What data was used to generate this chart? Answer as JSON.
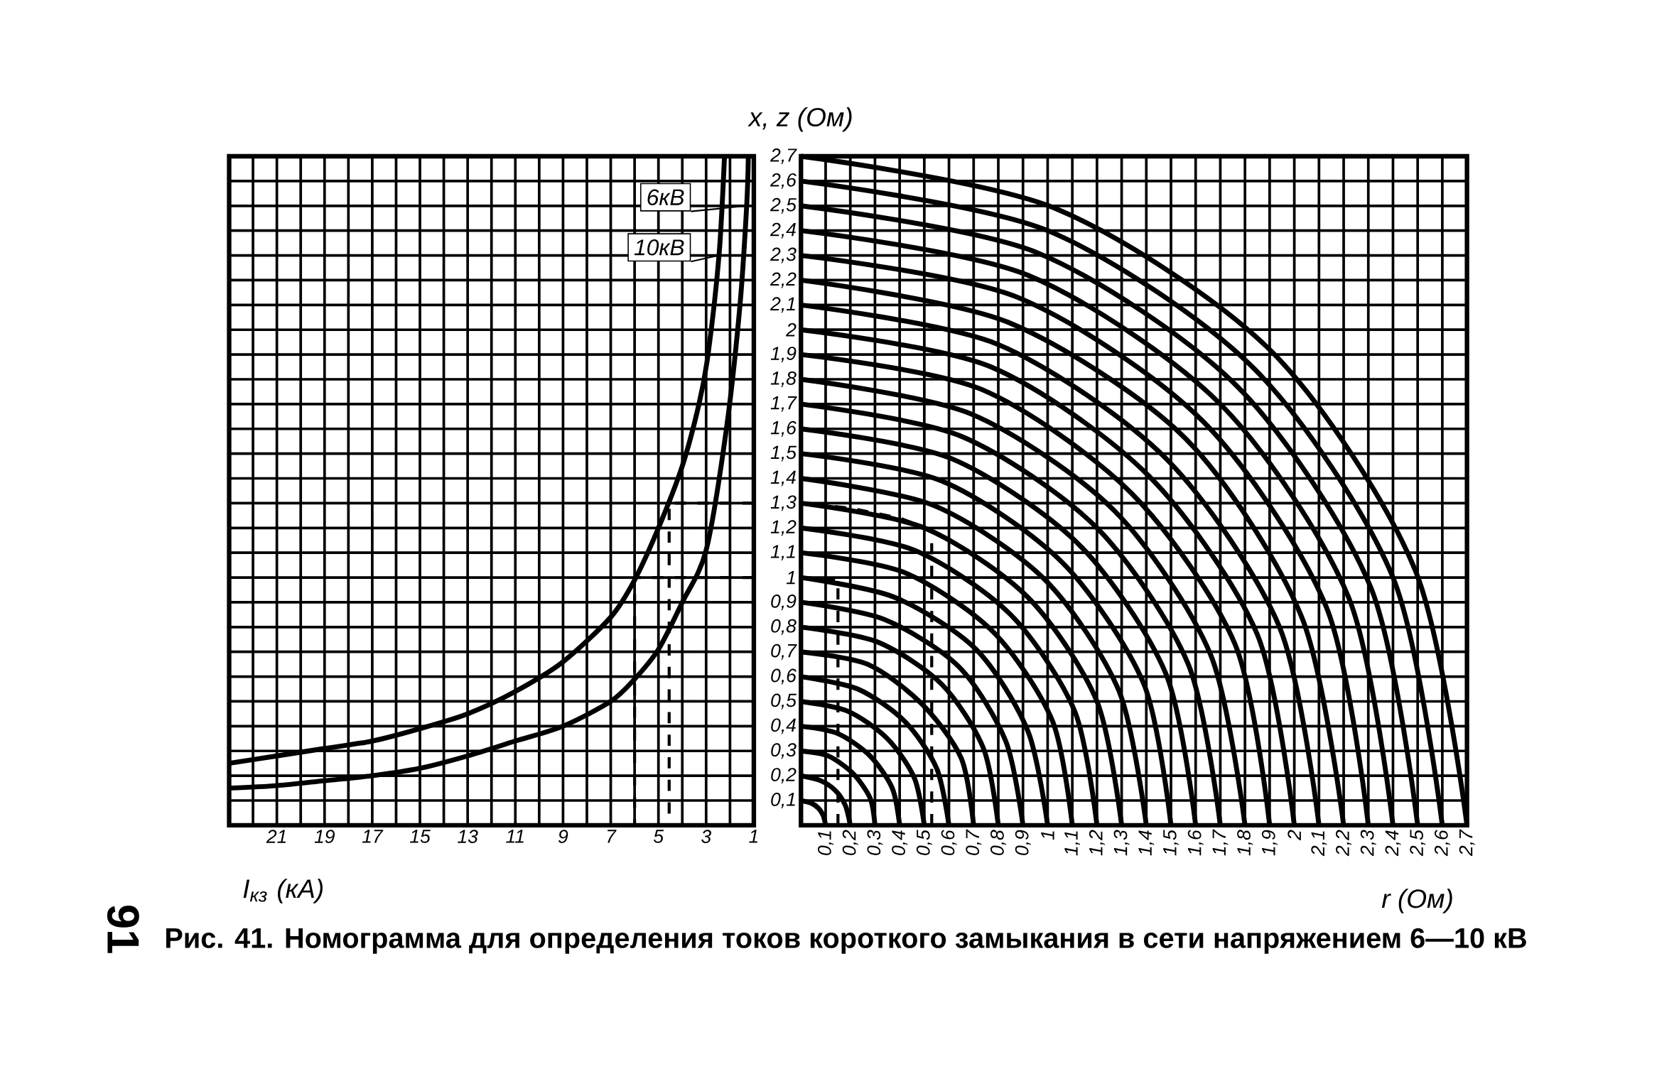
{
  "chart_data": [
    {
      "type": "line",
      "title": "Рис. 41. Номограмма для определения токов короткого замыкания в сети напряжением 6—10 кВ",
      "xlabel": "I$_{кз}$ (кА)",
      "annotations": [
        "91"
      ],
      "xlim": [
        23,
        1
      ],
      "ylim": [
        0,
        2.7
      ],
      "tick_labels": "x",
      "grid": true,
      "legend": "top right",
      "xticks": [
        {
          "value": 23,
          "label": null
        },
        {
          "value": 22,
          "label": null
        },
        21,
        {
          "value": 20,
          "label": null
        },
        19,
        {
          "value": 18,
          "label": null
        },
        17,
        {
          "value": 16,
          "label": null
        },
        15,
        {
          "value": 14,
          "label": null
        },
        13,
        {
          "value": 12,
          "label": null
        },
        11,
        {
          "value": 10,
          "label": null
        },
        9,
        {
          "value": 8,
          "label": null
        },
        7,
        {
          "value": 6,
          "label": null
        },
        5,
        {
          "value": 4,
          "label": null
        },
        3,
        {
          "value": 2,
          "label": null
        },
        1
      ],
      "yticks": [
        {
          "value": 0.1,
          "label": null
        },
        {
          "value": 0.2,
          "label": null
        },
        {
          "value": 0.3,
          "label": null
        },
        {
          "value": 0.4,
          "label": null
        },
        {
          "value": 0.5,
          "label": null
        },
        {
          "value": 0.6,
          "label": null
        },
        {
          "value": 0.7,
          "label": null
        },
        {
          "value": 0.8,
          "label": null
        },
        {
          "value": 0.9,
          "label": null
        },
        {
          "value": 1,
          "label": null
        },
        {
          "value": 1.1,
          "label": null
        },
        {
          "value": 1.2,
          "label": null
        },
        {
          "value": 1.3,
          "label": null
        },
        {
          "value": 1.4,
          "label": null
        },
        {
          "value": 1.5,
          "label": null
        },
        {
          "value": 1.6,
          "label": null
        },
        {
          "value": 1.7,
          "label": null
        },
        {
          "value": 1.8,
          "label": null
        },
        {
          "value": 1.9,
          "label": null
        },
        {
          "value": 2,
          "label": null
        },
        {
          "value": 2.1,
          "label": null
        },
        {
          "value": 2.2,
          "label": null
        },
        {
          "value": 2.3,
          "label": null
        },
        {
          "value": 2.4,
          "label": null
        },
        {
          "value": 2.5,
          "label": null
        },
        {
          "value": 2.6,
          "label": null
        },
        {
          "value": 2.7,
          "label": null
        }
      ],
      "series": [
        {
          "name": "6кВ",
          "color": "#000000",
          "x": [
            23,
            21,
            19,
            17,
            15,
            13,
            11,
            9,
            7,
            6,
            5,
            4,
            3,
            2.15,
            1.58,
            1.3,
            1.23
          ],
          "values": [
            0.15,
            0.16,
            0.18,
            0.2,
            0.23,
            0.28,
            0.34,
            0.4,
            0.5,
            0.59,
            0.71,
            0.9,
            1.11,
            1.6,
            2.1,
            2.5,
            2.7
          ]
        },
        {
          "name": "10кВ",
          "color": "#000000",
          "x": [
            23,
            21,
            19,
            17,
            15,
            13,
            11,
            9,
            7,
            6,
            5,
            4,
            3.3,
            2.92,
            2.46,
            2.23
          ],
          "values": [
            0.25,
            0.28,
            0.31,
            0.34,
            0.39,
            0.45,
            0.54,
            0.66,
            0.84,
            0.99,
            1.2,
            1.45,
            1.7,
            1.9,
            2.3,
            2.7
          ]
        },
        {
          "color": "#000000",
          "line_style": "dashed",
          "x": [
            1,
            4.55,
            4.55
          ],
          "values": [
            1.3,
            1.3,
            0
          ]
        },
        {
          "color": "#000000",
          "line_style": "dashed",
          "x": [
            1,
            6,
            6
          ],
          "values": [
            1,
            1,
            0
          ]
        }
      ]
    },
    {
      "type": "line",
      "xlabel": "r (Ом)",
      "ylabel": "x, z (Ом)",
      "xlim": [
        0,
        2.7
      ],
      "ylim": [
        0,
        2.7
      ],
      "grid": true,
      "xticks": [
        {
          "value": 0.1,
          "label": "0,1"
        },
        {
          "value": 0.2,
          "label": "0,2"
        },
        {
          "value": 0.3,
          "label": "0,3"
        },
        {
          "value": 0.4,
          "label": "0,4"
        },
        {
          "value": 0.5,
          "label": "0,5"
        },
        {
          "value": 0.6,
          "label": "0,6"
        },
        {
          "value": 0.7,
          "label": "0,7"
        },
        {
          "value": 0.8,
          "label": "0,8"
        },
        {
          "value": 0.9,
          "label": "0,9"
        },
        1,
        {
          "value": 1.1,
          "label": "1,1"
        },
        {
          "value": 1.2,
          "label": "1,2"
        },
        {
          "value": 1.3,
          "label": "1,3"
        },
        {
          "value": 1.4,
          "label": "1,4"
        },
        {
          "value": 1.5,
          "label": "1,5"
        },
        {
          "value": 1.6,
          "label": "1,6"
        },
        {
          "value": 1.7,
          "label": "1,7"
        },
        {
          "value": 1.8,
          "label": "1,8"
        },
        {
          "value": 1.9,
          "label": "1,9"
        },
        2,
        {
          "value": 2.1,
          "label": "2,1"
        },
        {
          "value": 2.2,
          "label": "2,2"
        },
        {
          "value": 2.3,
          "label": "2,3"
        },
        {
          "value": 2.4,
          "label": "2,4"
        },
        {
          "value": 2.5,
          "label": "2,5"
        },
        {
          "value": 2.6,
          "label": "2,6"
        },
        {
          "value": 2.7,
          "label": "2,7"
        }
      ],
      "yticks": [
        {
          "value": 0.1,
          "label": "0,1"
        },
        {
          "value": 0.2,
          "label": "0,2"
        },
        {
          "value": 0.3,
          "label": "0,3"
        },
        {
          "value": 0.4,
          "label": "0,4"
        },
        {
          "value": 0.5,
          "label": "0,5"
        },
        {
          "value": 0.6,
          "label": "0,6"
        },
        {
          "value": 0.7,
          "label": "0,7"
        },
        {
          "value": 0.8,
          "label": "0,8"
        },
        {
          "value": 0.9,
          "label": "0,9"
        },
        1,
        {
          "value": 1.1,
          "label": "1,1"
        },
        {
          "value": 1.2,
          "label": "1,2"
        },
        {
          "value": 1.3,
          "label": "1,3"
        },
        {
          "value": 1.4,
          "label": "1,4"
        },
        {
          "value": 1.5,
          "label": "1,5"
        },
        {
          "value": 1.6,
          "label": "1,6"
        },
        {
          "value": 1.7,
          "label": "1,7"
        },
        {
          "value": 1.8,
          "label": "1,8"
        },
        {
          "value": 1.9,
          "label": "1,9"
        },
        2,
        {
          "value": 2.1,
          "label": "2,1"
        },
        {
          "value": 2.2,
          "label": "2,2"
        },
        {
          "value": 2.3,
          "label": "2,3"
        },
        {
          "value": 2.4,
          "label": "2,4"
        },
        {
          "value": 2.5,
          "label": "2,5"
        },
        {
          "value": 2.6,
          "label": "2,6"
        },
        {
          "value": 2.7,
          "label": "2,7"
        }
      ],
      "series": [
        {
          "color": "#000000",
          "x": [
            0.1,
            0.09,
            0.07,
            0.04,
            0
          ],
          "values": [
            0,
            0.04,
            0.07,
            0.09,
            0.1
          ]
        },
        {
          "color": "#000000",
          "x": [
            0.2,
            0.18,
            0.14,
            0.08,
            0
          ],
          "values": [
            0,
            0.08,
            0.14,
            0.18,
            0.2
          ]
        },
        {
          "color": "#000000",
          "x": [
            0.3,
            0.28,
            0.21,
            0.11,
            0
          ],
          "values": [
            0,
            0.11,
            0.21,
            0.28,
            0.3
          ]
        },
        {
          "color": "#000000",
          "x": [
            0.4,
            0.37,
            0.28,
            0.15,
            0
          ],
          "values": [
            0,
            0.15,
            0.28,
            0.37,
            0.4
          ]
        },
        {
          "color": "#000000",
          "x": [
            0.5,
            0.46,
            0.35,
            0.19,
            0
          ],
          "values": [
            0,
            0.19,
            0.35,
            0.46,
            0.5
          ]
        },
        {
          "color": "#000000",
          "x": [
            0.6,
            0.55,
            0.42,
            0.23,
            0
          ],
          "values": [
            0,
            0.23,
            0.42,
            0.55,
            0.6
          ]
        },
        {
          "color": "#000000",
          "x": [
            0.7,
            0.65,
            0.49,
            0.27,
            0
          ],
          "values": [
            0,
            0.27,
            0.49,
            0.65,
            0.7
          ]
        },
        {
          "color": "#000000",
          "x": [
            0.8,
            0.74,
            0.57,
            0.31,
            0
          ],
          "values": [
            0,
            0.31,
            0.57,
            0.74,
            0.8
          ]
        },
        {
          "color": "#000000",
          "x": [
            0.9,
            0.83,
            0.64,
            0.34,
            0
          ],
          "values": [
            0,
            0.34,
            0.64,
            0.83,
            0.9
          ]
        },
        {
          "color": "#000000",
          "x": [
            1.0,
            0.92,
            0.71,
            0.38,
            0
          ],
          "values": [
            0,
            0.38,
            0.71,
            0.92,
            1.0
          ]
        },
        {
          "color": "#000000",
          "x": [
            1.1,
            1.02,
            0.78,
            0.42,
            0
          ],
          "values": [
            0,
            0.42,
            0.78,
            1.02,
            1.1
          ]
        },
        {
          "color": "#000000",
          "x": [
            1.2,
            1.11,
            0.85,
            0.46,
            0
          ],
          "values": [
            0,
            0.46,
            0.85,
            1.11,
            1.2
          ]
        },
        {
          "color": "#000000",
          "x": [
            1.3,
            1.2,
            0.92,
            0.5,
            0
          ],
          "values": [
            0,
            0.5,
            0.92,
            1.2,
            1.3
          ]
        },
        {
          "color": "#000000",
          "x": [
            1.4,
            1.29,
            0.99,
            0.54,
            0
          ],
          "values": [
            0,
            0.54,
            0.99,
            1.29,
            1.4
          ]
        },
        {
          "color": "#000000",
          "x": [
            1.5,
            1.39,
            1.06,
            0.57,
            0
          ],
          "values": [
            0,
            0.57,
            1.06,
            1.39,
            1.5
          ]
        },
        {
          "color": "#000000",
          "x": [
            1.6,
            1.48,
            1.13,
            0.61,
            0
          ],
          "values": [
            0,
            0.61,
            1.13,
            1.48,
            1.6
          ]
        },
        {
          "color": "#000000",
          "x": [
            1.7,
            1.57,
            1.2,
            0.65,
            0
          ],
          "values": [
            0,
            0.65,
            1.2,
            1.57,
            1.7
          ]
        },
        {
          "color": "#000000",
          "x": [
            1.8,
            1.66,
            1.27,
            0.69,
            0
          ],
          "values": [
            0,
            0.69,
            1.27,
            1.66,
            1.8
          ]
        },
        {
          "color": "#000000",
          "x": [
            1.9,
            1.76,
            1.34,
            0.73,
            0
          ],
          "values": [
            0,
            0.73,
            1.34,
            1.76,
            1.9
          ]
        },
        {
          "color": "#000000",
          "x": [
            2.0,
            1.85,
            1.41,
            0.77,
            0
          ],
          "values": [
            0,
            0.77,
            1.41,
            1.85,
            2.0
          ]
        },
        {
          "color": "#000000",
          "x": [
            2.1,
            1.94,
            1.48,
            0.8,
            0
          ],
          "values": [
            0,
            0.8,
            1.48,
            1.94,
            2.1
          ]
        },
        {
          "color": "#000000",
          "x": [
            2.2,
            2.03,
            1.56,
            0.84,
            0
          ],
          "values": [
            0,
            0.84,
            1.56,
            2.03,
            2.2
          ]
        },
        {
          "color": "#000000",
          "x": [
            2.3,
            2.13,
            1.63,
            0.88,
            0
          ],
          "values": [
            0,
            0.88,
            1.63,
            2.13,
            2.3
          ]
        },
        {
          "color": "#000000",
          "x": [
            2.4,
            2.22,
            1.7,
            0.92,
            0
          ],
          "values": [
            0,
            0.92,
            1.7,
            2.22,
            2.4
          ]
        },
        {
          "color": "#000000",
          "x": [
            2.5,
            2.31,
            1.77,
            0.96,
            0
          ],
          "values": [
            0,
            0.96,
            1.77,
            2.31,
            2.5
          ]
        },
        {
          "color": "#000000",
          "x": [
            2.6,
            2.4,
            1.84,
            1.0,
            0
          ],
          "values": [
            0,
            1.0,
            1.84,
            2.4,
            2.6
          ]
        },
        {
          "color": "#000000",
          "x": [
            2.7,
            2.49,
            1.91,
            1.03,
            0
          ],
          "values": [
            0,
            1.03,
            1.91,
            2.49,
            2.7
          ]
        },
        {
          "color": "#000000",
          "line_style": "dashed",
          "x": [
            0.53,
            0.53,
            0.4,
            0.2,
            0
          ],
          "values": [
            0,
            1.19,
            1.24,
            1.28,
            1.3
          ]
        },
        {
          "color": "#000000",
          "line_style": "dashed",
          "x": [
            0.15,
            0.15,
            0
          ],
          "values": [
            0,
            0.99,
            1
          ]
        }
      ]
    }
  ]
}
